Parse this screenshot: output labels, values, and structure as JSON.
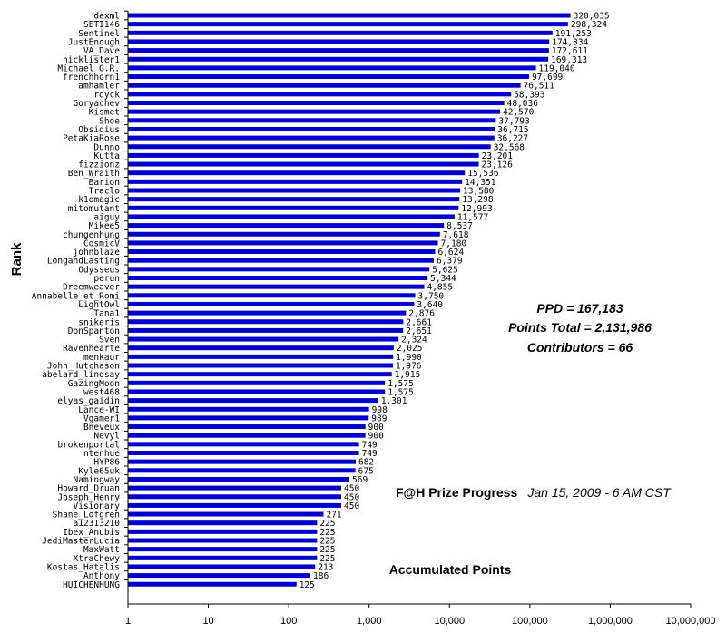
{
  "chart_data": {
    "type": "bar",
    "orientation": "horizontal",
    "x_scale": "log",
    "xlim": [
      1,
      10000000
    ],
    "x_ticks": [
      1,
      10,
      100,
      1000,
      10000,
      100000,
      1000000,
      10000000
    ],
    "x_tick_labels": [
      "1",
      "10",
      "100",
      "1,000",
      "10,000",
      "100,000",
      "1,000,000",
      "10,000,000"
    ],
    "ylabel": "Rank",
    "xlabel": "",
    "bar_color": "#0000cc",
    "categories": [
      "dexml",
      "SETI146",
      "Sentinel",
      "JustEnough",
      "VA_Dave",
      "nicklister1",
      "Michael_G.R.",
      "frenchhorn1",
      "amhamler",
      "rdyck",
      "Goryachev",
      "Kismet",
      "Shoe",
      "Obsidius",
      "PetaKiaRose",
      "Dunno",
      "Kutta",
      "fizzionz",
      "Ben_Wraith",
      "Barion",
      "Traclo",
      "k1omagic",
      "mitomutant",
      "aiguy",
      "Mikee5",
      "chungenhung",
      "CosmicV",
      "johnblaze",
      "LongandLasting",
      "Odysseus",
      "perun",
      "Dreemweaver",
      "Annabelle_et_Romi",
      "LightOwl",
      "Tana1",
      "snikeris",
      "DonSpanton",
      "Sven",
      "Ravenhearte",
      "menkaur",
      "John_Hutchason",
      "abelard_lindsay",
      "GazingMoon",
      "west468",
      "elyas_gaidin",
      "Lance-WI",
      "Vgamer1",
      "Bneveux",
      "Nevyl",
      "brokenportal",
      "ntenhue",
      "HYP86",
      "Kyle65uk",
      "Namingway",
      "Howard_Druan",
      "Joseph_Henry",
      "Visionary",
      "Shane_Lofgren",
      "a12313210",
      "Ibex_Anubis",
      "JediMasterLucia",
      "MaxWatt",
      "XtraChewy",
      "Kostas_Hatalis",
      "Anthony",
      "HUICHENHUNG"
    ],
    "values": [
      320035,
      298324,
      191253,
      174334,
      172611,
      169313,
      119040,
      97699,
      76511,
      58393,
      48036,
      42570,
      37793,
      36715,
      36227,
      32568,
      23201,
      23126,
      15536,
      14351,
      13580,
      13298,
      12993,
      11577,
      8537,
      7618,
      7180,
      6624,
      6379,
      5625,
      5344,
      4855,
      3750,
      3640,
      2876,
      2661,
      2651,
      2324,
      2025,
      1990,
      1976,
      1915,
      1575,
      1575,
      1301,
      998,
      989,
      900,
      900,
      749,
      749,
      682,
      675,
      569,
      450,
      450,
      450,
      271,
      225,
      225,
      225,
      225,
      225,
      213,
      186,
      125
    ],
    "value_labels": [
      "320,035",
      "298,324",
      "191,253",
      "174,334",
      "172,611",
      "169,313",
      "119,040",
      "97,699",
      "76,511",
      "58,393",
      "48,036",
      "42,570",
      "37,793",
      "36,715",
      "36,227",
      "32,568",
      "23,201",
      "23,126",
      "15,536",
      "14,351",
      "13,580",
      "13,298",
      "12,993",
      "11,577",
      "8,537",
      "7,618",
      "7,180",
      "6,624",
      "6,379",
      "5,625",
      "5,344",
      "4,855",
      "3,750",
      "3,640",
      "2,876",
      "2,661",
      "2,651",
      "2,324",
      "2,025",
      "1,990",
      "1,976",
      "1,915",
      "1,575",
      "1,575",
      "1,301",
      "998",
      "989",
      "900",
      "900",
      "749",
      "749",
      "682",
      "675",
      "569",
      "450",
      "450",
      "450",
      "271",
      "225",
      "225",
      "225",
      "225",
      "225",
      "213",
      "186",
      "125"
    ],
    "annotations": {
      "ppd": "PPD = 167,183",
      "points_total": "Points Total = 2,131,986",
      "contributors": "Contributors = 66",
      "prize_title": "F@H Prize Progress",
      "prize_date": "Jan 15, 2009 - 6 AM CST",
      "accumulated": "Accumulated Points"
    },
    "grid": false,
    "legend": "none"
  }
}
